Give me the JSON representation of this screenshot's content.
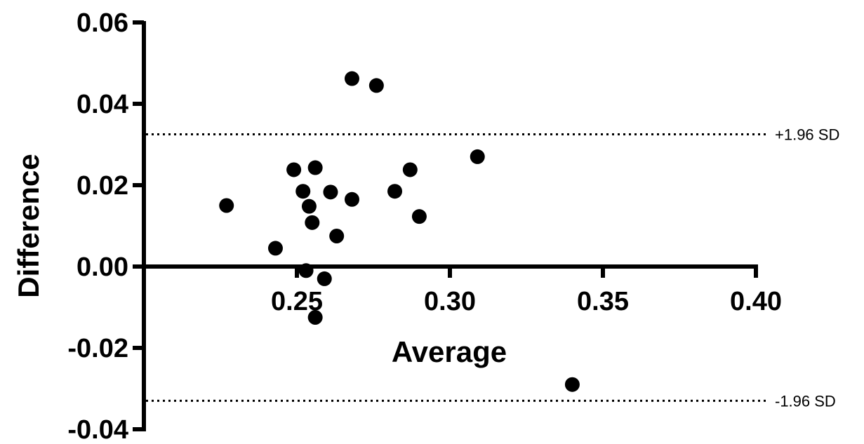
{
  "chart_data": {
    "type": "scatter",
    "title": "",
    "xlabel": "Average",
    "ylabel": "Difference",
    "xlim": [
      0.2,
      0.4
    ],
    "ylim": [
      -0.04,
      0.06
    ],
    "x_ticks": [
      "0.25",
      "0.30",
      "0.35",
      "0.40"
    ],
    "x_tick_values": [
      0.25,
      0.3,
      0.35,
      0.4
    ],
    "y_ticks": [
      "0.06",
      "0.04",
      "0.02",
      "0.00",
      "-0.02",
      "-0.04"
    ],
    "y_tick_values": [
      0.06,
      0.04,
      0.02,
      0.0,
      -0.02,
      -0.04
    ],
    "points": [
      {
        "x": 0.227,
        "y": 0.015
      },
      {
        "x": 0.243,
        "y": 0.0045
      },
      {
        "x": 0.249,
        "y": 0.0238
      },
      {
        "x": 0.252,
        "y": 0.0185
      },
      {
        "x": 0.253,
        "y": -0.001
      },
      {
        "x": 0.254,
        "y": 0.0148
      },
      {
        "x": 0.255,
        "y": 0.0108
      },
      {
        "x": 0.256,
        "y": 0.0243
      },
      {
        "x": 0.256,
        "y": -0.0125
      },
      {
        "x": 0.259,
        "y": -0.003
      },
      {
        "x": 0.261,
        "y": 0.0183
      },
      {
        "x": 0.263,
        "y": 0.0075
      },
      {
        "x": 0.268,
        "y": 0.0165
      },
      {
        "x": 0.268,
        "y": 0.0462
      },
      {
        "x": 0.276,
        "y": 0.0445
      },
      {
        "x": 0.282,
        "y": 0.0185
      },
      {
        "x": 0.287,
        "y": 0.0238
      },
      {
        "x": 0.29,
        "y": 0.0123
      },
      {
        "x": 0.309,
        "y": 0.027
      },
      {
        "x": 0.34,
        "y": -0.029
      }
    ],
    "reference_lines": [
      {
        "label": "+1.96 SD",
        "y": 0.0325
      },
      {
        "label": "-1.96 SD",
        "y": -0.033
      }
    ],
    "grid": false,
    "legend": "none",
    "colors": {
      "points": "#000000",
      "axes": "#000000",
      "reference_lines": "#000000"
    }
  }
}
